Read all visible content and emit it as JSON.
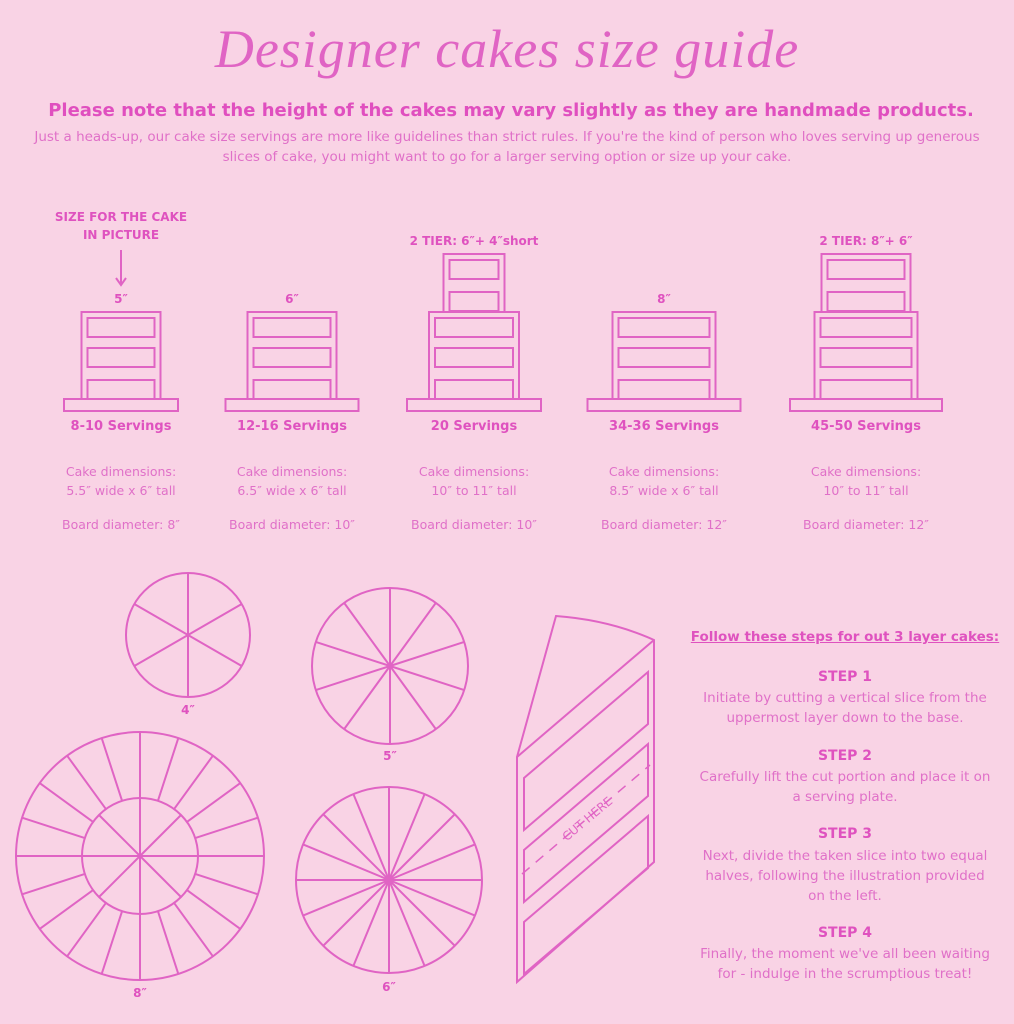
{
  "header": {
    "title": "Designer cakes size guide",
    "note": "Please note that the height of the cakes may vary slightly as they are handmade products.",
    "intro": "Just a heads-up, our cake size servings are more like guidelines than strict rules. If you're the kind of person who loves serving up generous slices of cake, you might want to go for a larger serving option or size up your cake."
  },
  "feature_note": {
    "lines": [
      "SIZE FOR THE CAKE",
      "IN PICTURE"
    ]
  },
  "cakes": [
    {
      "label": "5″",
      "servings": "8-10 Servings",
      "dimensions": [
        "Cake dimensions:",
        "5.5″ wide x 6″ tall"
      ],
      "board": "Board diameter: 8″"
    },
    {
      "label": "6″",
      "servings": "12-16 Servings",
      "dimensions": [
        "Cake dimensions:",
        "6.5″ wide x 6″ tall"
      ],
      "board": "Board diameter: 10″"
    },
    {
      "label": "2 TIER: 6″+ 4″short",
      "servings": "20 Servings",
      "dimensions": [
        "Cake dimensions:",
        "10″ to 11″ tall"
      ],
      "board": "Board diameter: 10″"
    },
    {
      "label": "8″",
      "servings": "34-36 Servings",
      "dimensions": [
        "Cake dimensions:",
        "8.5″ wide x 6″ tall"
      ],
      "board": "Board diameter: 12″"
    },
    {
      "label": "2 TIER: 8″+ 6″",
      "servings": "45-50 Servings",
      "dimensions": [
        "Cake dimensions:",
        "10″ to 11″ tall"
      ],
      "board": "Board diameter: 12″"
    }
  ],
  "cutting_guides": [
    {
      "label": "4″"
    },
    {
      "label": "5″"
    },
    {
      "label": "8″"
    },
    {
      "label": "6″"
    }
  ],
  "slice": {
    "label": "CUT HERE"
  },
  "steps": {
    "heading": "Follow these steps for out 3 layer cakes:",
    "items": [
      {
        "title": "STEP 1",
        "text": "Initiate by cutting a vertical slice from the uppermost layer down to the base."
      },
      {
        "title": "STEP 2",
        "text": "Carefully lift the cut portion and place it on a serving plate."
      },
      {
        "title": "STEP 3",
        "text": "Next, divide the taken slice into two equal halves, following the illustration provided on the left."
      },
      {
        "title": "STEP 4",
        "text": "Finally, the moment we've all been waiting for - indulge in the scrumptious treat!"
      }
    ]
  }
}
